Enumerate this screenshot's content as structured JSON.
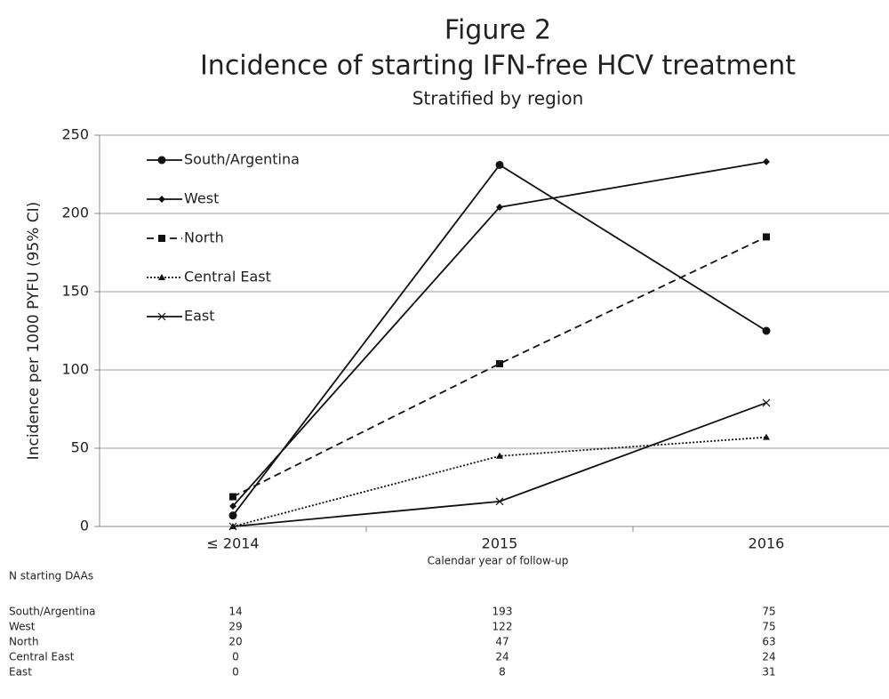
{
  "chart_data": {
    "type": "line",
    "title": "Figure 2",
    "subtitle": "Incidence of starting IFN-free HCV treatment",
    "note": "Stratified by region",
    "x_label": "Calendar year of follow-up",
    "y_label": "Incidence per 1000 PYFU (95% CI)",
    "categories": [
      "≤ 2014",
      "2015",
      "2016"
    ],
    "ylim": [
      0,
      250
    ],
    "yticks": [
      0,
      50,
      100,
      150,
      200,
      250
    ],
    "grid": true,
    "legend": "upper-left",
    "series": [
      {
        "name": "South/Argentina",
        "color": "#111111",
        "marker": "circle",
        "dash": "solid",
        "values": [
          7,
          231,
          125
        ]
      },
      {
        "name": "West",
        "color": "#111111",
        "marker": "diamond",
        "dash": "solid",
        "values": [
          13,
          204,
          233
        ]
      },
      {
        "name": "North",
        "color": "#111111",
        "marker": "square",
        "dash": "dashed",
        "values": [
          19,
          104,
          185
        ]
      },
      {
        "name": "Central East",
        "color": "#111111",
        "marker": "triangle",
        "dash": "dotted",
        "values": [
          0,
          45,
          57
        ]
      },
      {
        "name": "East",
        "color": "#111111",
        "marker": "x",
        "dash": "solid",
        "values": [
          0,
          16,
          79
        ]
      }
    ]
  },
  "table": {
    "title": "N starting DAAs",
    "rows": [
      {
        "label": "South/Argentina",
        "values": [
          "14",
          "193",
          "75"
        ]
      },
      {
        "label": "West",
        "values": [
          "29",
          "122",
          "75"
        ]
      },
      {
        "label": "North",
        "values": [
          "20",
          "47",
          "63"
        ]
      },
      {
        "label": "Central East",
        "values": [
          "0",
          "24",
          "24"
        ]
      },
      {
        "label": "East",
        "values": [
          "0",
          "8",
          "31"
        ]
      }
    ]
  }
}
